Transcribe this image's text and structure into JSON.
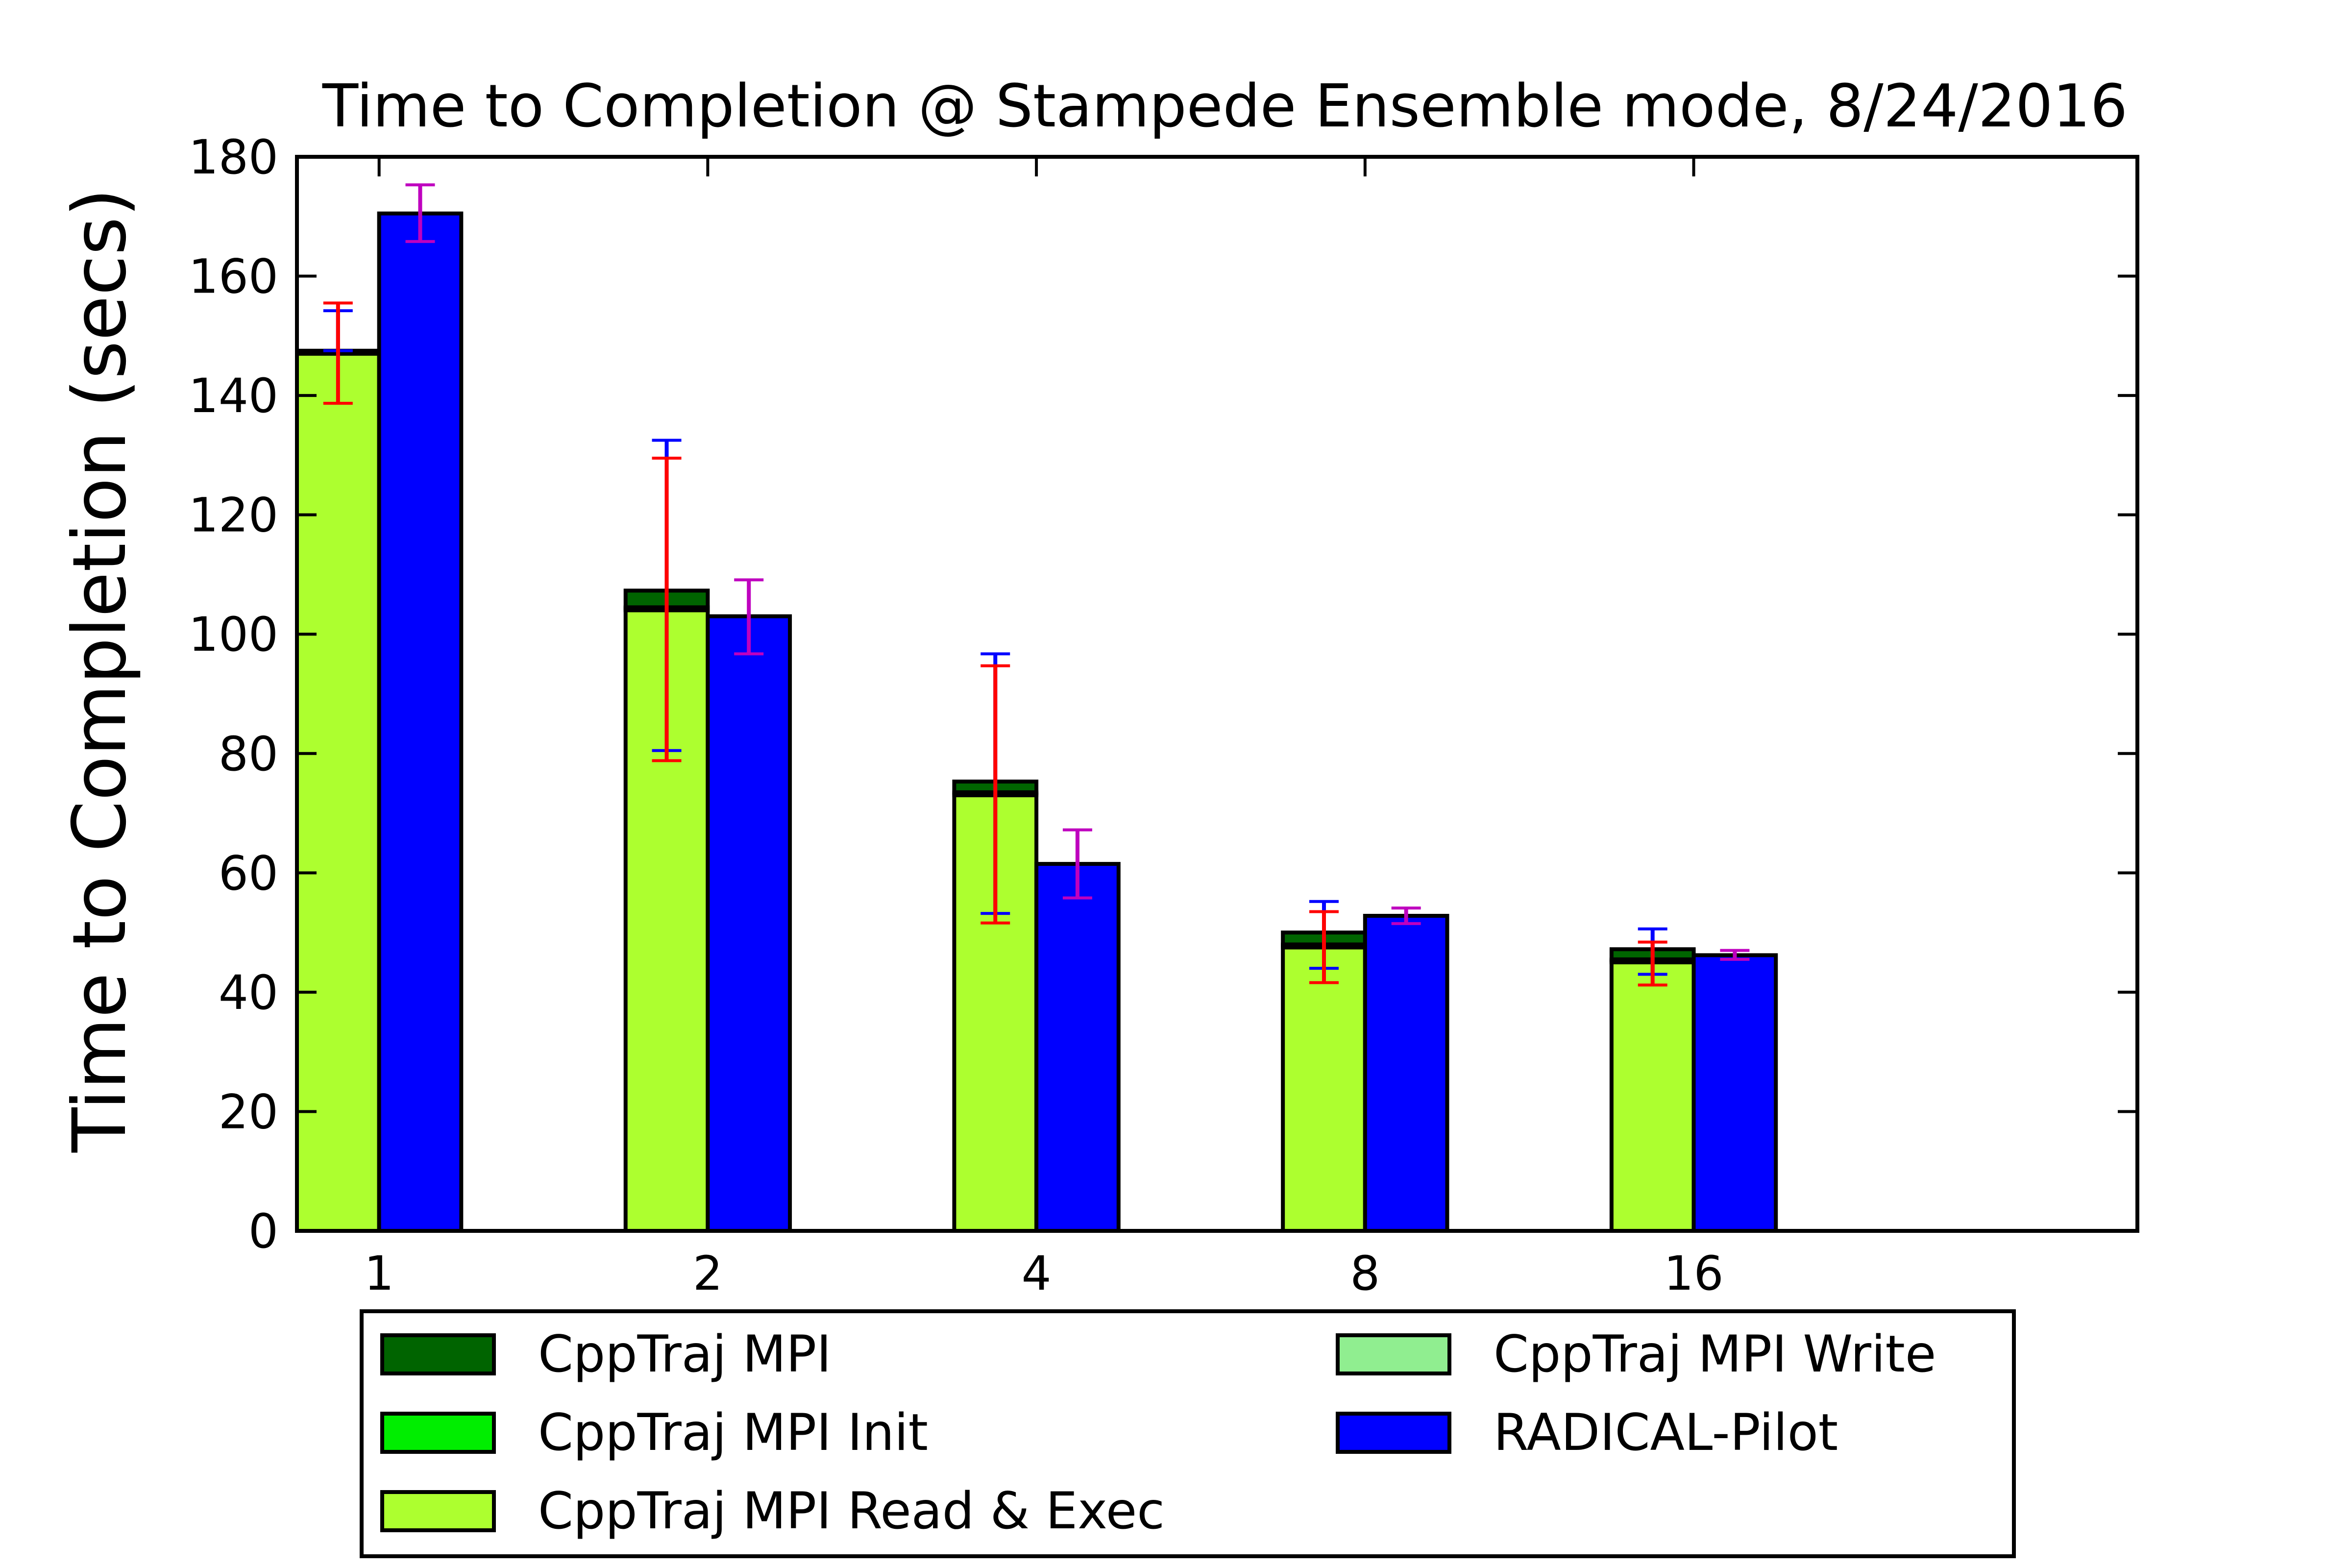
{
  "chart_data": {
    "type": "bar",
    "title": "Time to Completion @ Stampede Ensemble mode, 8/24/2016",
    "xlabel": "",
    "ylabel": "Time to Completion (secs)",
    "ylim": [
      0,
      180
    ],
    "yticks": [
      0,
      20,
      40,
      60,
      80,
      100,
      120,
      140,
      160,
      180
    ],
    "categories": [
      "1",
      "2",
      "4",
      "8",
      "16"
    ],
    "grid": false,
    "legend_position": "bottom",
    "stacked_group": {
      "name": "CppTraj",
      "segments": [
        {
          "name": "CppTraj MPI Read & Exec",
          "color": "#adff2f",
          "values": [
            147,
            104,
            73,
            47.5,
            45
          ]
        },
        {
          "name": "CppTraj MPI Init",
          "color": "#00ee00",
          "values": [
            0.3,
            0.3,
            0.3,
            0.3,
            0.3
          ]
        },
        {
          "name": "CppTraj MPI Write",
          "color": "#90ee90",
          "values": [
            0.2,
            0.2,
            0.2,
            0.2,
            0.2
          ]
        },
        {
          "name": "CppTraj MPI",
          "color": "#006400",
          "values": [
            0,
            2.8,
            1.8,
            2.0,
            1.7
          ]
        }
      ],
      "error_bars": [
        {
          "color": "#ff0000",
          "center": [
            147.5,
            104,
            73,
            47.5,
            45
          ],
          "low": [
            138.7,
            78.8,
            51.6,
            41.6,
            41.2
          ],
          "high": [
            155.5,
            129.5,
            94.7,
            53.5,
            48.4
          ]
        },
        {
          "color": "#0000ff",
          "center": [
            147.5,
            106.5,
            75,
            49.5,
            46.7
          ],
          "low": [
            147.5,
            80.5,
            53.2,
            44,
            43
          ],
          "high": [
            154.2,
            132.5,
            96.7,
            55.2,
            50.6
          ]
        }
      ]
    },
    "series": [
      {
        "name": "RADICAL-Pilot",
        "color": "#0000ff",
        "values": [
          170.5,
          103,
          61.5,
          52.8,
          46.2
        ],
        "error_bars": {
          "color": "#bf00bf",
          "low": [
            165.8,
            96.7,
            55.8,
            51.5,
            45.5
          ],
          "high": [
            175.3,
            109.1,
            67.2,
            54.1,
            47
          ]
        }
      }
    ],
    "legend": [
      {
        "name": "CppTraj MPI",
        "color": "#006400"
      },
      {
        "name": "CppTraj MPI Init",
        "color": "#00ee00"
      },
      {
        "name": "CppTraj MPI Read & Exec",
        "color": "#adff2f"
      },
      {
        "name": "CppTraj MPI Write",
        "color": "#90ee90"
      },
      {
        "name": "RADICAL-Pilot",
        "color": "#0000ff"
      }
    ]
  }
}
